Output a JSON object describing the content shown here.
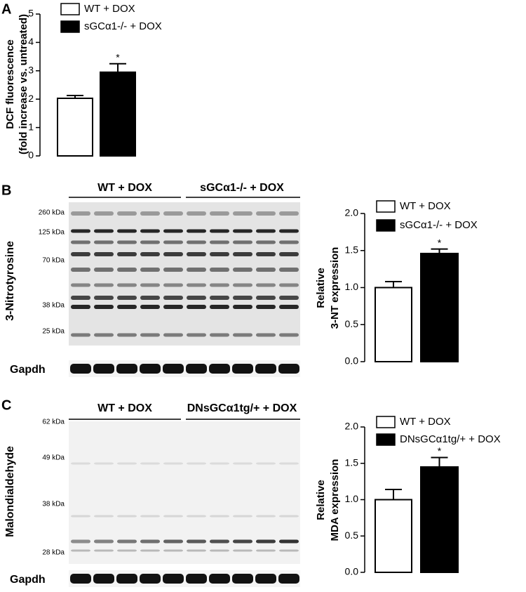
{
  "panel_labels": [
    "A",
    "B",
    "C"
  ],
  "chart_data": [
    {
      "type": "bar",
      "ylabel": [
        "DCF fluorescence",
        "(fold increase vs. untreated)"
      ],
      "ylim": [
        0,
        5
      ],
      "yticks": [
        0,
        1,
        2,
        3,
        4,
        5
      ],
      "annotation": "*",
      "series": [
        {
          "name": "WT + DOX",
          "color": "#ffffff",
          "values": [
            2.03
          ],
          "errors": [
            0.1
          ]
        },
        {
          "name": "sGCα1-/- + DOX",
          "color": "#000000",
          "values": [
            2.95
          ],
          "errors": [
            0.3
          ]
        }
      ]
    },
    {
      "type": "bar",
      "ylabel": [
        "Relative",
        "3-NT expression"
      ],
      "ylim": [
        0,
        2
      ],
      "yticks": [
        {
          "value": 0,
          "label": "0.0"
        },
        {
          "value": 0.5,
          "label": "0.5"
        },
        {
          "value": 1,
          "label": "1.0"
        },
        {
          "value": 1.5,
          "label": "1.5"
        },
        {
          "value": 2,
          "label": "2.0"
        }
      ],
      "annotation": "*",
      "series": [
        {
          "name": "WT + DOX",
          "color": "#ffffff",
          "values": [
            1.0
          ],
          "errors": [
            0.08
          ]
        },
        {
          "name": "sGCα1-/- + DOX",
          "color": "#000000",
          "values": [
            1.46
          ],
          "errors": [
            0.06
          ]
        }
      ]
    },
    {
      "type": "bar",
      "ylabel": [
        "Relative",
        "MDA expression"
      ],
      "ylim": [
        0,
        2
      ],
      "yticks": [
        {
          "value": 0,
          "label": "0.0"
        },
        {
          "value": 0.5,
          "label": "0.5"
        },
        {
          "value": 1,
          "label": "1.0"
        },
        {
          "value": 1.5,
          "label": "1.5"
        },
        {
          "value": 2,
          "label": "2.0"
        }
      ],
      "annotation": "*",
      "series": [
        {
          "name": "WT + DOX",
          "color": "#ffffff",
          "values": [
            1.0
          ],
          "errors": [
            0.14
          ]
        },
        {
          "name": "DNsGCα1tg/+ + DOX",
          "color": "#000000",
          "values": [
            1.45
          ],
          "errors": [
            0.13
          ]
        }
      ]
    }
  ],
  "blots": [
    {
      "groups": [
        "WT + DOX",
        "sGCα1-/- + DOX"
      ],
      "ylabel": "3-Nitrotyrosine",
      "markers": [
        "260 kDa",
        "125 kDa",
        "70 kDa",
        "38 kDa",
        "25 kDa"
      ],
      "loading": "Gapdh"
    },
    {
      "groups": [
        "WT + DOX",
        "DNsGCα1tg/+ + DOX"
      ],
      "ylabel": "Malondialdehyde",
      "markers": [
        "62 kDa",
        "49 kDa",
        "38 kDa",
        "28 kDa"
      ],
      "loading": "Gapdh"
    }
  ]
}
